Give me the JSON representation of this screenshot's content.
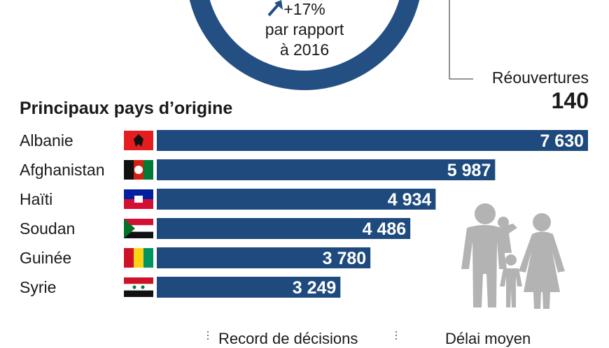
{
  "ring": {
    "change": "+17%",
    "line1": "par rapport",
    "line2": "à 2016",
    "color": "#234f83"
  },
  "side": {
    "label": "Réouvertures",
    "value": "140"
  },
  "section_title": "Principaux pays d’origine",
  "bottom": {
    "left": "Record de décisions",
    "right": "Délai moyen"
  },
  "colors": {
    "bar": "#1f4a7d",
    "bar_text": "#ffffff",
    "icon": "#b3b3b3"
  },
  "chart_data": {
    "type": "bar",
    "orientation": "horizontal",
    "title": "Principaux pays d’origine",
    "categories": [
      "Albanie",
      "Afghanistan",
      "Haïti",
      "Soudan",
      "Guinée",
      "Syrie"
    ],
    "values": [
      7630,
      5987,
      4934,
      4486,
      3780,
      3249
    ],
    "value_labels": [
      "7 630",
      "5 987",
      "4 934",
      "4 486",
      "3 780",
      "3 249"
    ],
    "flags": [
      "flag-albania",
      "flag-afghanistan",
      "flag-haiti",
      "flag-sudan",
      "flag-guinea",
      "flag-syria"
    ],
    "xlim": [
      0,
      7630
    ],
    "grid": false
  }
}
